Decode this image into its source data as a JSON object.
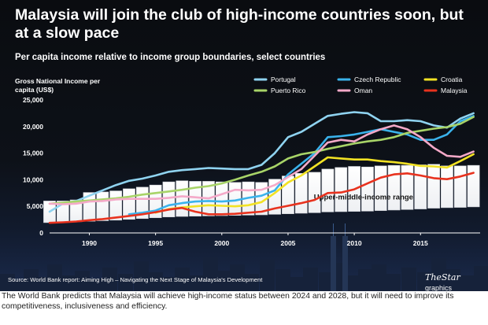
{
  "title": "Malaysia will join the club of high-income countries soon, but at a slow pace",
  "subtitle": "Per capita income relative to income group boundaries, select countries",
  "source": "Source:  World Bank report: Aiming High – Navigating the Next Stage of Malaysia's Development",
  "brand": {
    "name": "TheStar",
    "suffix": "graphics"
  },
  "caption": "The World Bank predicts that Malaysia will achieve high-income status between 2024 and 2028, but it will need to improve its competitiveness, inclusiveness and efficiency.",
  "chart_data": {
    "type": "line",
    "title": "Malaysia will join the club of high-income countries soon, but at a slow pace",
    "ylabel": "Gross National Income per capita (US$)",
    "xlabel": "",
    "xlim": [
      1987,
      2019.5
    ],
    "ylim": [
      0,
      25000
    ],
    "x_ticks": [
      1990,
      1995,
      2000,
      2005,
      2010,
      2015
    ],
    "x_tick_labels": [
      "1990",
      "1995",
      "2000",
      "2005",
      "2010",
      "2015"
    ],
    "y_ticks": [
      0,
      5000,
      10000,
      15000,
      20000,
      25000
    ],
    "y_tick_labels": [
      "0",
      "5,000",
      "10,000",
      "15,000",
      "20,000",
      "25,000"
    ],
    "band": {
      "label": "Upper-middle-income range",
      "years": [
        1987,
        1988,
        1989,
        1990,
        1991,
        1992,
        1993,
        1994,
        1995,
        1996,
        1997,
        1998,
        1999,
        2000,
        2001,
        2002,
        2003,
        2004,
        2005,
        2006,
        2007,
        2008,
        2009,
        2010,
        2011,
        2012,
        2013,
        2014,
        2015,
        2016,
        2017,
        2018,
        2019
      ],
      "lower": [
        1940,
        2000,
        2100,
        2200,
        2300,
        2400,
        2550,
        2700,
        2850,
        3000,
        3100,
        3150,
        3200,
        3250,
        3300,
        3350,
        3400,
        3500,
        3600,
        3700,
        3800,
        3950,
        4000,
        4050,
        4100,
        4200,
        4300,
        4400,
        4500,
        4650,
        4750,
        4800,
        4900
      ],
      "upper": [
        6000,
        6000,
        6200,
        7600,
        7700,
        7900,
        8300,
        8600,
        9000,
        9600,
        9800,
        9700,
        9700,
        9600,
        9500,
        9600,
        9500,
        10100,
        10700,
        11200,
        11400,
        12000,
        12300,
        12500,
        12400,
        12600,
        12700,
        12700,
        12800,
        12900,
        12600,
        12600,
        12700
      ]
    },
    "series": [
      {
        "name": "Portugal",
        "color": "#8fd3f0",
        "x": [
          1987,
          1988,
          1989,
          1990,
          1991,
          1992,
          1993,
          1994,
          1995,
          1996,
          1997,
          1998,
          1999,
          2000,
          2001,
          2002,
          2003,
          2004,
          2005,
          2006,
          2007,
          2008,
          2009,
          2010,
          2011,
          2012,
          2013,
          2014,
          2015,
          2016,
          2017,
          2018,
          2019
        ],
        "values": [
          4000,
          5500,
          6000,
          7000,
          8000,
          9000,
          9800,
          10200,
          10800,
          11500,
          11800,
          12000,
          12200,
          12100,
          12000,
          12000,
          12800,
          15000,
          18000,
          19000,
          20500,
          22000,
          22400,
          22700,
          22500,
          21000,
          21000,
          21200,
          21000,
          20200,
          19800,
          21500,
          22500
        ]
      },
      {
        "name": "Czech Republic",
        "color": "#3ab3ec",
        "x": [
          1993,
          1994,
          1995,
          1996,
          1997,
          1998,
          1999,
          2000,
          2001,
          2002,
          2003,
          2004,
          2005,
          2006,
          2007,
          2008,
          2009,
          2010,
          2011,
          2012,
          2013,
          2014,
          2015,
          2016,
          2017,
          2018,
          2019
        ],
        "values": [
          3500,
          3800,
          4200,
          5200,
          5600,
          5900,
          6000,
          5900,
          6100,
          6600,
          7000,
          8000,
          11000,
          13000,
          15000,
          18000,
          18200,
          18500,
          19000,
          19500,
          19000,
          18500,
          17500,
          17500,
          18500,
          21000,
          22000
        ]
      },
      {
        "name": "Croatia",
        "color": "#f2e224",
        "x": [
          1995,
          1996,
          1997,
          1998,
          1999,
          2000,
          2001,
          2002,
          2003,
          2004,
          2005,
          2006,
          2007,
          2008,
          2009,
          2010,
          2011,
          2012,
          2013,
          2014,
          2015,
          2016,
          2017,
          2018,
          2019
        ],
        "values": [
          3800,
          4500,
          4800,
          5000,
          5200,
          5100,
          5000,
          5200,
          5800,
          7500,
          9500,
          10800,
          12500,
          14200,
          14000,
          13800,
          13800,
          13500,
          13300,
          13000,
          12600,
          12500,
          12300,
          13500,
          14800
        ]
      },
      {
        "name": "Puerto Rico",
        "color": "#a8d468",
        "x": [
          1987,
          1988,
          1989,
          1990,
          1991,
          1992,
          1993,
          1994,
          1995,
          1996,
          1997,
          1998,
          1999,
          2000,
          2001,
          2002,
          2003,
          2004,
          2005,
          2006,
          2007,
          2008,
          2009,
          2010,
          2011,
          2012,
          2013,
          2014,
          2015,
          2016,
          2017,
          2018,
          2019
        ],
        "values": [
          5500,
          5700,
          5900,
          6100,
          6300,
          6500,
          6800,
          7200,
          7500,
          7800,
          8100,
          8500,
          8800,
          9300,
          10000,
          10800,
          11500,
          12500,
          14000,
          14800,
          15200,
          15800,
          16300,
          16800,
          17200,
          17500,
          18000,
          18800,
          19200,
          19600,
          19900,
          20500,
          21800
        ]
      },
      {
        "name": "Oman",
        "color": "#f4a9c8",
        "x": [
          1987,
          1988,
          1989,
          1990,
          1991,
          1992,
          1993,
          1994,
          1995,
          1996,
          1997,
          1998,
          1999,
          2000,
          2001,
          2002,
          2003,
          2004,
          2005,
          2006,
          2007,
          2008,
          2009,
          2010,
          2011,
          2012,
          2013,
          2014,
          2015,
          2016,
          2017,
          2018,
          2019
        ],
        "values": [
          5500,
          5400,
          5500,
          5900,
          6000,
          6300,
          6400,
          6400,
          6400,
          6600,
          6900,
          6700,
          6500,
          7300,
          8100,
          8000,
          8100,
          9000,
          10500,
          12000,
          14500,
          17000,
          17500,
          17200,
          18500,
          19500,
          20200,
          19500,
          18000,
          16000,
          14500,
          14300,
          15300
        ]
      },
      {
        "name": "Malaysia",
        "color": "#e8321e",
        "x": [
          1987,
          1988,
          1989,
          1990,
          1991,
          1992,
          1993,
          1994,
          1995,
          1996,
          1997,
          1998,
          1999,
          2000,
          2001,
          2002,
          2003,
          2004,
          2005,
          2006,
          2007,
          2008,
          2009,
          2010,
          2011,
          2012,
          2013,
          2014,
          2015,
          2016,
          2017,
          2018,
          2019
        ],
        "values": [
          1900,
          2000,
          2150,
          2400,
          2600,
          2900,
          3200,
          3500,
          3900,
          4400,
          4700,
          4000,
          3500,
          3500,
          3600,
          3800,
          4000,
          4600,
          5100,
          5600,
          6200,
          7500,
          7600,
          8200,
          9300,
          10400,
          11000,
          11200,
          10800,
          10300,
          10100,
          10600,
          11300
        ]
      }
    ]
  }
}
